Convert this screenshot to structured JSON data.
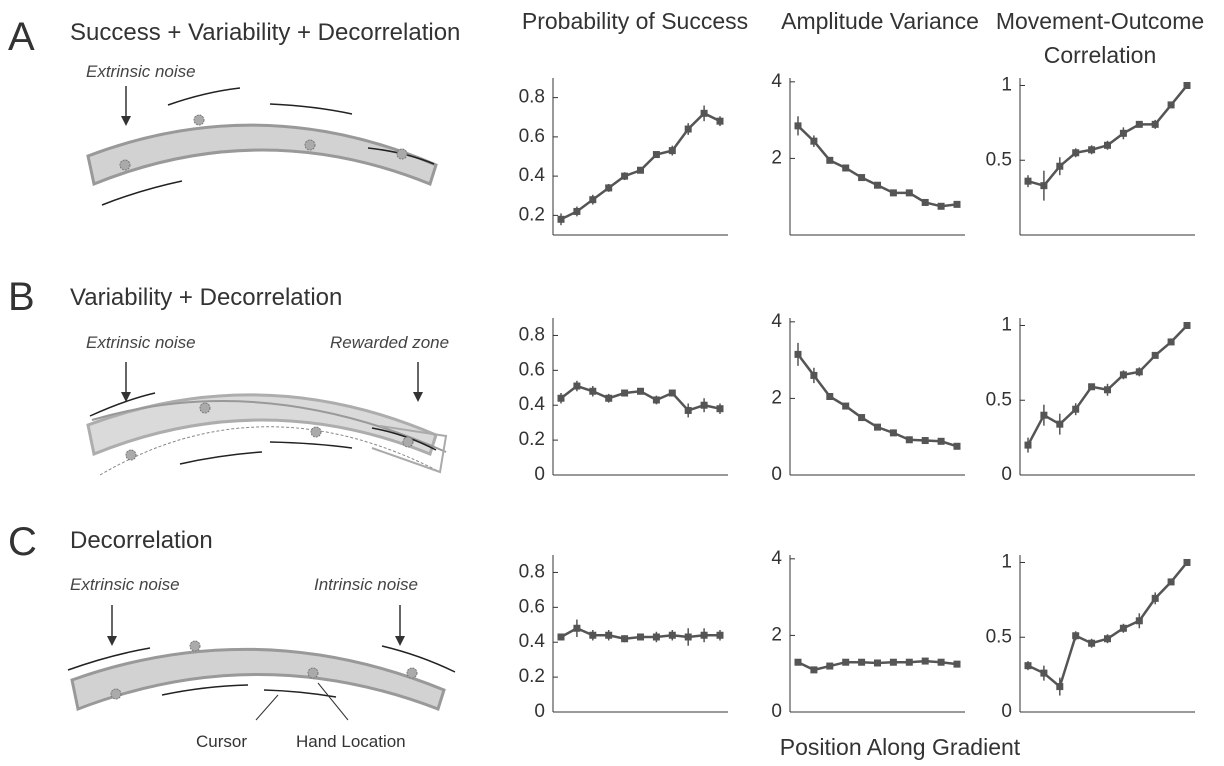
{
  "column_titles": [
    "Probability of Success",
    "Amplitude Variance",
    "Movement-Outcome Correlation"
  ],
  "x_label": "Position Along Gradient",
  "panels": [
    {
      "letter": "A",
      "title": "Success + Variability + Decorrelation",
      "labels": [
        "Extrinsic noise"
      ]
    },
    {
      "letter": "B",
      "title": "Variability + Decorrelation",
      "labels": [
        "Extrinsic noise",
        "Rewarded zone"
      ]
    },
    {
      "letter": "C",
      "title": "Decorrelation",
      "labels": [
        "Extrinsic noise",
        "Intrinsic noise",
        "Cursor",
        "Hand Location"
      ]
    }
  ],
  "chart_data": [
    {
      "type": "line",
      "color": "#555555",
      "categories": [
        null,
        null,
        null,
        null,
        null,
        null,
        null,
        null,
        null,
        null,
        null
      ],
      "values": [
        0.18,
        0.22,
        0.28,
        0.34,
        0.4,
        0.43,
        0.51,
        0.53,
        0.64,
        0.72,
        0.68
      ],
      "errors": [
        0.03,
        0.025,
        0.025,
        0.02,
        0.02,
        0.015,
        0.015,
        0.025,
        0.03,
        0.04,
        0.025
      ],
      "ylim": [
        0.1,
        0.9
      ],
      "yticks": [
        0.2,
        0.4,
        0.6,
        0.8
      ]
    },
    {
      "type": "line",
      "color": "#555555",
      "categories": [
        null,
        null,
        null,
        null,
        null,
        null,
        null,
        null,
        null,
        null,
        null
      ],
      "values": [
        2.85,
        2.45,
        1.95,
        1.75,
        1.5,
        1.3,
        1.1,
        1.1,
        0.85,
        0.75,
        0.8
      ],
      "errors": [
        0.25,
        0.15,
        0.08,
        0.06,
        0.05,
        0.05,
        0.05,
        0.05,
        0.05,
        0.05,
        0.05
      ],
      "ylim": [
        0,
        4.1
      ],
      "yticks": [
        2,
        4
      ]
    },
    {
      "type": "line",
      "color": "#555555",
      "categories": [
        null,
        null,
        null,
        null,
        null,
        null,
        null,
        null,
        null,
        null,
        null
      ],
      "values": [
        0.36,
        0.33,
        0.46,
        0.55,
        0.57,
        0.6,
        0.68,
        0.74,
        0.74,
        0.87,
        1.0
      ],
      "errors": [
        0.04,
        0.1,
        0.06,
        0.03,
        0.03,
        0.03,
        0.04,
        0.02,
        0.03,
        0.02,
        0.005
      ],
      "ylim": [
        0,
        1.05
      ],
      "yticks": [
        0.5,
        1
      ]
    },
    {
      "type": "line",
      "color": "#555555",
      "categories": [
        null,
        null,
        null,
        null,
        null,
        null,
        null,
        null,
        null,
        null,
        null
      ],
      "values": [
        0.44,
        0.51,
        0.48,
        0.44,
        0.47,
        0.48,
        0.43,
        0.47,
        0.37,
        0.4,
        0.38
      ],
      "errors": [
        0.03,
        0.03,
        0.03,
        0.025,
        0.02,
        0.015,
        0.025,
        0.015,
        0.04,
        0.04,
        0.03
      ],
      "ylim": [
        0,
        0.9
      ],
      "yticks": [
        0,
        0.2,
        0.4,
        0.6,
        0.8
      ]
    },
    {
      "type": "line",
      "color": "#555555",
      "categories": [
        null,
        null,
        null,
        null,
        null,
        null,
        null,
        null,
        null,
        null,
        null
      ],
      "values": [
        3.15,
        2.6,
        2.05,
        1.8,
        1.5,
        1.25,
        1.1,
        0.92,
        0.9,
        0.88,
        0.75
      ],
      "errors": [
        0.3,
        0.2,
        0.08,
        0.06,
        0.05,
        0.05,
        0.05,
        0.05,
        0.05,
        0.05,
        0.05
      ],
      "ylim": [
        0,
        4.1
      ],
      "yticks": [
        0,
        2,
        4
      ]
    },
    {
      "type": "line",
      "color": "#555555",
      "categories": [
        null,
        null,
        null,
        null,
        null,
        null,
        null,
        null,
        null,
        null,
        null
      ],
      "values": [
        0.2,
        0.4,
        0.34,
        0.44,
        0.59,
        0.57,
        0.67,
        0.69,
        0.8,
        0.89,
        1.0
      ],
      "errors": [
        0.05,
        0.07,
        0.07,
        0.04,
        0.02,
        0.04,
        0.03,
        0.03,
        0.02,
        0.02,
        0.005
      ],
      "ylim": [
        0,
        1.05
      ],
      "yticks": [
        0,
        0.5,
        1
      ]
    },
    {
      "type": "line",
      "color": "#555555",
      "categories": [
        null,
        null,
        null,
        null,
        null,
        null,
        null,
        null,
        null,
        null,
        null
      ],
      "values": [
        0.43,
        0.48,
        0.44,
        0.44,
        0.42,
        0.43,
        0.43,
        0.44,
        0.43,
        0.44,
        0.44
      ],
      "errors": [
        0.02,
        0.05,
        0.03,
        0.03,
        0.02,
        0.02,
        0.03,
        0.03,
        0.05,
        0.04,
        0.03
      ],
      "ylim": [
        0,
        0.9
      ],
      "yticks": [
        0,
        0.2,
        0.4,
        0.6,
        0.8
      ]
    },
    {
      "type": "line",
      "color": "#555555",
      "categories": [
        null,
        null,
        null,
        null,
        null,
        null,
        null,
        null,
        null,
        null,
        null
      ],
      "values": [
        1.3,
        1.1,
        1.2,
        1.3,
        1.3,
        1.28,
        1.3,
        1.3,
        1.33,
        1.3,
        1.25
      ],
      "errors": [
        0.04,
        0.04,
        0.04,
        0.04,
        0.04,
        0.04,
        0.05,
        0.05,
        0.07,
        0.06,
        0.08
      ],
      "ylim": [
        0,
        4.1
      ],
      "yticks": [
        0,
        2,
        4
      ]
    },
    {
      "type": "line",
      "color": "#555555",
      "categories": [
        null,
        null,
        null,
        null,
        null,
        null,
        null,
        null,
        null,
        null,
        null
      ],
      "values": [
        0.31,
        0.26,
        0.17,
        0.51,
        0.46,
        0.49,
        0.56,
        0.61,
        0.76,
        0.87,
        1.0
      ],
      "errors": [
        0.03,
        0.05,
        0.06,
        0.03,
        0.03,
        0.03,
        0.03,
        0.05,
        0.04,
        0.02,
        0.005
      ],
      "ylim": [
        0,
        1.05
      ],
      "yticks": [
        0,
        0.5,
        1
      ]
    }
  ]
}
